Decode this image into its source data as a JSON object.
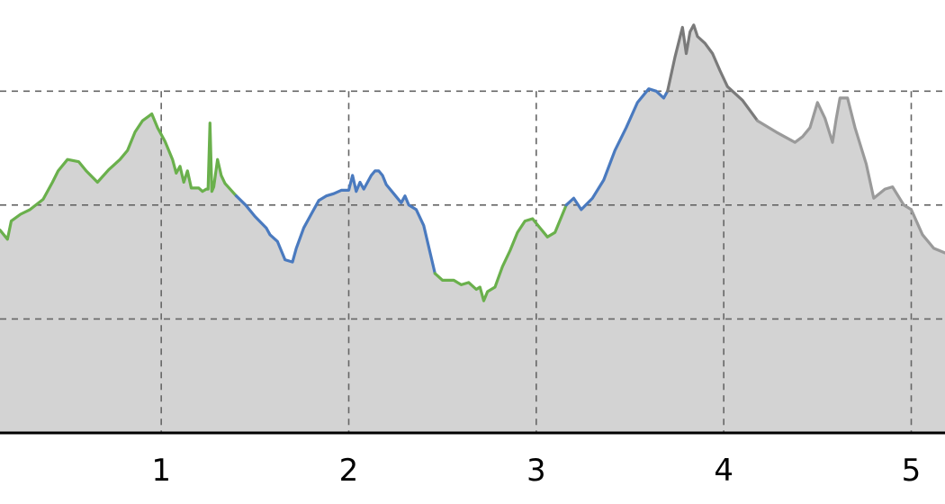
{
  "chart_data": {
    "type": "area",
    "title": "",
    "xlabel": "",
    "ylabel": "",
    "xlim": [
      0.14,
      5.18
    ],
    "ylim": [
      0,
      380
    ],
    "x_ticks": [
      1,
      2,
      3,
      4,
      5
    ],
    "x_tick_labels": [
      "1",
      "2",
      "3",
      "4",
      "5"
    ],
    "y_grid_values": [
      100,
      200,
      300
    ],
    "grid": true,
    "fill_color": "#d3d3d3",
    "segments": [
      {
        "color": "#6ab04c",
        "points": [
          [
            0.14,
            178
          ],
          [
            0.18,
            170
          ],
          [
            0.2,
            186
          ],
          [
            0.25,
            192
          ],
          [
            0.3,
            196
          ],
          [
            0.37,
            205
          ],
          [
            0.42,
            220
          ],
          [
            0.45,
            230
          ],
          [
            0.5,
            240
          ],
          [
            0.56,
            238
          ],
          [
            0.6,
            230
          ],
          [
            0.66,
            220
          ],
          [
            0.72,
            231
          ],
          [
            0.78,
            240
          ],
          [
            0.82,
            248
          ],
          [
            0.86,
            264
          ],
          [
            0.9,
            274
          ],
          [
            0.95,
            280
          ],
          [
            0.98,
            268
          ],
          [
            1.02,
            256
          ],
          [
            1.06,
            240
          ],
          [
            1.08,
            228
          ],
          [
            1.1,
            234
          ],
          [
            1.12,
            220
          ],
          [
            1.14,
            230
          ],
          [
            1.16,
            215
          ],
          [
            1.2,
            215
          ],
          [
            1.22,
            212
          ],
          [
            1.24,
            214
          ],
          [
            1.25,
            214
          ],
          [
            1.26,
            272
          ],
          [
            1.27,
            212
          ],
          [
            1.28,
            216
          ],
          [
            1.3,
            240
          ],
          [
            1.32,
            226
          ],
          [
            1.34,
            219
          ],
          [
            1.4,
            208
          ]
        ]
      },
      {
        "color": "#4a7abf",
        "points": [
          [
            1.4,
            208
          ],
          [
            1.45,
            200
          ],
          [
            1.5,
            190
          ],
          [
            1.56,
            180
          ],
          [
            1.58,
            174
          ],
          [
            1.62,
            168
          ],
          [
            1.66,
            152
          ],
          [
            1.7,
            150
          ],
          [
            1.72,
            162
          ],
          [
            1.76,
            180
          ],
          [
            1.8,
            192
          ],
          [
            1.84,
            204
          ],
          [
            1.88,
            208
          ],
          [
            1.92,
            210
          ],
          [
            1.96,
            213
          ],
          [
            2.0,
            213
          ],
          [
            2.02,
            226
          ],
          [
            2.04,
            212
          ],
          [
            2.06,
            220
          ],
          [
            2.08,
            214
          ],
          [
            2.12,
            226
          ],
          [
            2.14,
            230
          ],
          [
            2.16,
            230
          ],
          [
            2.18,
            226
          ],
          [
            2.2,
            218
          ],
          [
            2.24,
            210
          ],
          [
            2.28,
            202
          ],
          [
            2.3,
            208
          ],
          [
            2.32,
            200
          ],
          [
            2.36,
            196
          ],
          [
            2.4,
            182
          ],
          [
            2.46,
            140
          ]
        ]
      },
      {
        "color": "#6ab04c",
        "points": [
          [
            2.46,
            140
          ],
          [
            2.5,
            134
          ],
          [
            2.56,
            134
          ],
          [
            2.6,
            130
          ],
          [
            2.64,
            132
          ],
          [
            2.68,
            126
          ],
          [
            2.7,
            128
          ],
          [
            2.72,
            116
          ],
          [
            2.74,
            124
          ],
          [
            2.78,
            128
          ],
          [
            2.82,
            146
          ],
          [
            2.86,
            160
          ],
          [
            2.9,
            176
          ],
          [
            2.94,
            186
          ],
          [
            2.98,
            188
          ],
          [
            3.02,
            180
          ],
          [
            3.06,
            172
          ],
          [
            3.1,
            176
          ],
          [
            3.16,
            200
          ]
        ]
      },
      {
        "color": "#4a7abf",
        "points": [
          [
            3.16,
            200
          ],
          [
            3.2,
            206
          ],
          [
            3.24,
            196
          ],
          [
            3.3,
            206
          ],
          [
            3.36,
            222
          ],
          [
            3.42,
            248
          ],
          [
            3.48,
            268
          ],
          [
            3.54,
            290
          ],
          [
            3.6,
            302
          ],
          [
            3.64,
            300
          ],
          [
            3.68,
            294
          ],
          [
            3.7,
            300
          ]
        ]
      },
      {
        "color": "#7a7a7a",
        "points": [
          [
            3.7,
            300
          ],
          [
            3.74,
            330
          ],
          [
            3.78,
            356
          ],
          [
            3.8,
            333
          ],
          [
            3.82,
            352
          ],
          [
            3.84,
            358
          ],
          [
            3.86,
            348
          ],
          [
            3.9,
            342
          ],
          [
            3.94,
            333
          ],
          [
            3.98,
            318
          ],
          [
            4.02,
            304
          ],
          [
            4.1,
            292
          ],
          [
            4.18,
            274
          ]
        ]
      },
      {
        "color": "#9a9a9a",
        "points": [
          [
            4.18,
            274
          ],
          [
            4.28,
            264
          ],
          [
            4.38,
            255
          ],
          [
            4.42,
            260
          ],
          [
            4.46,
            268
          ],
          [
            4.5,
            290
          ],
          [
            4.54,
            276
          ],
          [
            4.58,
            255
          ],
          [
            4.6,
            276
          ],
          [
            4.62,
            294
          ],
          [
            4.66,
            294
          ],
          [
            4.7,
            268
          ],
          [
            4.76,
            236
          ],
          [
            4.8,
            206
          ],
          [
            4.86,
            214
          ],
          [
            4.9,
            216
          ],
          [
            4.96,
            200
          ],
          [
            5.0,
            196
          ],
          [
            5.06,
            174
          ],
          [
            5.12,
            162
          ],
          [
            5.18,
            158
          ]
        ]
      }
    ]
  }
}
